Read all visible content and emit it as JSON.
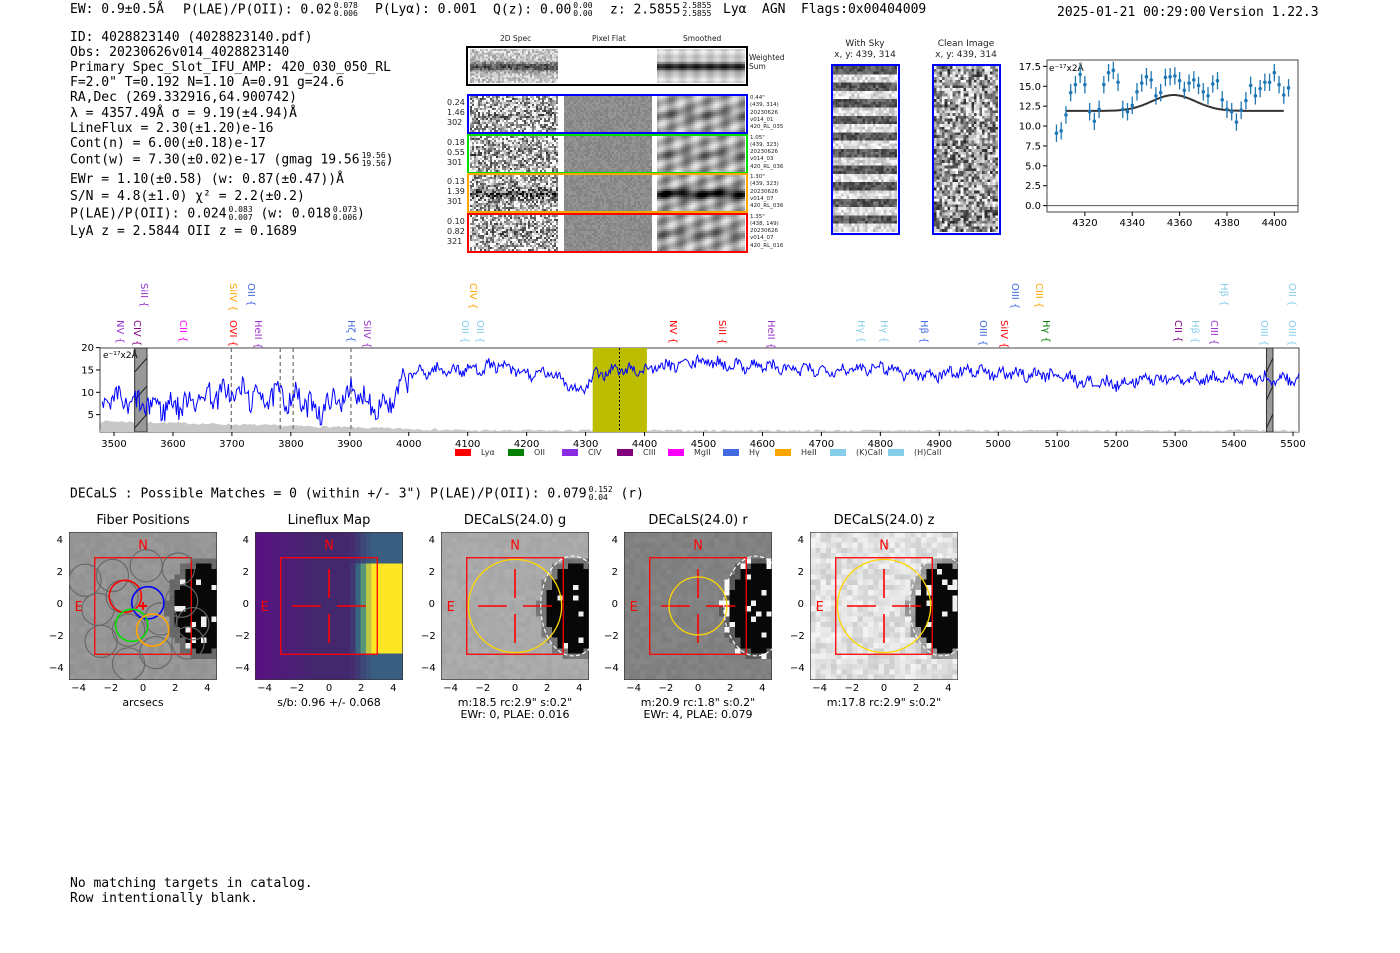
{
  "header": {
    "ew": "EW: 0.9±0.5Å",
    "plae_label": "P(LAE)/P(OII): 0.02",
    "plae_hi": "0.078",
    "plae_lo": "0.006",
    "plya": "P(Lyα): 0.001",
    "qz_label": "Q(z): 0.00",
    "qz_hi": "0.00",
    "qz_lo": "0.00",
    "z_label": "z: 2.5855",
    "z_hi": "2.5855",
    "z_lo": "2.5855",
    "line": "Lyα",
    "agn": "AGN",
    "flags": "Flags:0x00404009",
    "datetime": "2025-01-21 00:29:00",
    "version": "Version 1.22.3"
  },
  "info": {
    "id": "ID: 4028823140 (4028823140.pdf)",
    "obs": "Obs: 20230626v014_4028823140",
    "primary": "Primary Spec_Slot_IFU_AMP: 420_030_050_RL",
    "params": "F=2.0\"  T=0.192  N=1.10  A=0.91  g=24.6",
    "radec": "RA,Dec (269.332916,64.900742)",
    "lambda": "λ = 4357.49Å   σ = 9.19(±4.94)Å",
    "lineflux": "LineFlux = 2.30(±1.20)e-16",
    "contn": "Cont(n) = 6.00(±0.18)e-17",
    "contw": "Cont(w) = 7.30(±0.02)e-17 (gmag 19.56",
    "contw_hi": "19.56",
    "contw_lo": "19.56",
    "contw_end": ")",
    "ewr": "EWr = 1.10(±0.58) (w: 0.87(±0.47))Å",
    "sn": "S/N = 4.8(±1.0)  χ² = 2.2(±0.2)",
    "plae": "P(LAE)/P(OII): 0.024",
    "plae_hi": "0.083",
    "plae_lo": "0.007",
    "plae_w": "(w: 0.018",
    "plae_w_hi": "0.073",
    "plae_w_lo": "0.006",
    "plae_end": ")",
    "z": "LyA z = 2.5844   OII z = 0.1689"
  },
  "spec2d": {
    "headers": [
      "2D Spec",
      "Pixel Flat",
      "Smoothed"
    ],
    "weighted_label": "Weighted Sum",
    "rows": [
      {
        "color": "#0000ff",
        "left": [
          "0.24",
          "1.46",
          "302"
        ],
        "right": [
          "0.44\"",
          "(439, 314)",
          "20230626",
          "v014_01",
          "420_RL_035"
        ]
      },
      {
        "color": "#00dd00",
        "left": [
          "0.18",
          "0.55",
          "301"
        ],
        "right": [
          "1.05\"",
          "(439, 323)",
          "20230626",
          "v014_03",
          "420_RL_036"
        ]
      },
      {
        "color": "#ffa500",
        "left": [
          "0.13",
          "1.39",
          "301"
        ],
        "right": [
          "1.30\"",
          "(439, 323)",
          "20230626",
          "v014_07",
          "420_RL_036"
        ]
      },
      {
        "color": "#ff0000",
        "left": [
          "0.10",
          "0.82",
          "321"
        ],
        "right": [
          "1.35\"",
          "(438, 149)",
          "20230626",
          "v014_07",
          "420_RL_016"
        ]
      }
    ]
  },
  "with_sky": {
    "title": "With Sky",
    "coords": "x, y: 439, 314"
  },
  "clean_image": {
    "title": "Clean Image",
    "coords": "x, y: 439, 314"
  },
  "chart_data": [
    {
      "type": "scatter",
      "name": "line-zoom",
      "unit_label": "e⁻¹⁷x2Å",
      "xlim": [
        4304,
        4410
      ],
      "ylim": [
        -0.8,
        18.3
      ],
      "xticks": [
        4320,
        4340,
        4360,
        4380,
        4400
      ],
      "yticks": [
        "0.0",
        "2.5",
        "5.0",
        "7.5",
        "10.0",
        "12.5",
        "15.0",
        "17.5"
      ],
      "x": [
        4308,
        4310,
        4312,
        4314,
        4316,
        4318,
        4320,
        4322,
        4324,
        4326,
        4328,
        4330,
        4332,
        4334,
        4336,
        4338,
        4340,
        4342,
        4344,
        4346,
        4348,
        4350,
        4352,
        4354,
        4356,
        4358,
        4360,
        4362,
        4364,
        4366,
        4368,
        4370,
        4372,
        4374,
        4376,
        4378,
        4380,
        4382,
        4384,
        4386,
        4388,
        4390,
        4392,
        4394,
        4396,
        4398,
        4400,
        4402,
        4404,
        4406
      ],
      "y": [
        9.1,
        9.4,
        11.4,
        14.2,
        15.2,
        16.5,
        15.2,
        11.8,
        10.6,
        12.1,
        15.2,
        16.7,
        17.0,
        15.5,
        12.1,
        11.8,
        12.6,
        14.3,
        15.4,
        16.2,
        15.8,
        13.8,
        14.2,
        16.1,
        16.2,
        16.3,
        15.7,
        14.5,
        15.4,
        15.8,
        15.1,
        14.3,
        13.8,
        15.3,
        15.7,
        13.3,
        12.1,
        11.8,
        10.5,
        12.0,
        13.2,
        15.1,
        13.8,
        14.7,
        15.5,
        15.5,
        16.7,
        15.2,
        13.9,
        14.8
      ],
      "yerr": 1.1,
      "model": {
        "type": "gaussian",
        "center": 4357.49,
        "sigma": 9.19,
        "continuum": 11.9,
        "amplitude": 2.0,
        "range": [
          4312,
          4404
        ]
      },
      "colors": {
        "points": "#1f77b4",
        "model": "#333333"
      }
    },
    {
      "type": "line",
      "name": "full-spectrum",
      "unit_label": "e⁻¹⁷x2Å",
      "xlim": [
        3478,
        5512
      ],
      "ylim": [
        1.1,
        20
      ],
      "xticks": [
        3500,
        3600,
        3700,
        3800,
        3900,
        4000,
        4100,
        4200,
        4300,
        4400,
        4500,
        4600,
        4700,
        4800,
        4900,
        5000,
        5100,
        5200,
        5300,
        5400,
        5500
      ],
      "yticks": [
        5,
        10,
        15,
        20
      ],
      "continuum_x": [
        3480,
        3500,
        3550,
        3600,
        3650,
        3700,
        3750,
        3800,
        3850,
        3900,
        3950,
        3975,
        4000,
        4050,
        4100,
        4150,
        4200,
        4250,
        4290,
        4320,
        4350,
        4400,
        4450,
        4500,
        4550,
        4600,
        4650,
        4700,
        4750,
        4800,
        4850,
        4900,
        4950,
        5000,
        5050,
        5100,
        5150,
        5200,
        5250,
        5300,
        5350,
        5400,
        5450,
        5500,
        5512
      ],
      "continuum_y": [
        7,
        8,
        7,
        7,
        9,
        10,
        9,
        9,
        6,
        10,
        7,
        8,
        14,
        15,
        15,
        16,
        14,
        14,
        10,
        14,
        15,
        15,
        16,
        17,
        16,
        16,
        15,
        15,
        15,
        16,
        14,
        14,
        15,
        14,
        14,
        14,
        12,
        12,
        13,
        13,
        13,
        13,
        13,
        13,
        13
      ],
      "series_color": "#0000ff",
      "highlight_region": [
        4312,
        4404
      ],
      "highlight_color": "#bdbd00",
      "line_center": 4357.49,
      "masked_regions": [
        [
          3535,
          3556
        ],
        [
          5455,
          5466
        ]
      ],
      "dashed_lines": [
        3699,
        3782,
        3804,
        3902
      ],
      "line_labels": [
        {
          "t": "NV",
          "w": 3508,
          "c": "#9a32cd",
          "row": 0
        },
        {
          "t": "CIV",
          "w": 3537,
          "c": "#800080",
          "row": 0
        },
        {
          "t": "SiII",
          "w": 3549,
          "c": "#9a32cd",
          "row": 0
        },
        {
          "t": "CII",
          "w": 3615,
          "c": "#ff00ff",
          "row": 0
        },
        {
          "t": "OVI",
          "w": 3700,
          "c": "#ff0000",
          "row": 0
        },
        {
          "t": "HeII",
          "w": 3742,
          "c": "#9a32cd",
          "row": 0
        },
        {
          "t": "Hζ",
          "w": 3900,
          "c": "#4169e1",
          "row": 0
        },
        {
          "t": "SiIV",
          "w": 3928,
          "c": "#9a32cd",
          "row": 0
        },
        {
          "t": "OII",
          "w": 4093,
          "c": "#87ceeb",
          "row": 0
        },
        {
          "t": "CIV",
          "w": 4108,
          "c": "#ffa500",
          "row": 0
        },
        {
          "t": "OII",
          "w": 4120,
          "c": "#87ceeb",
          "row": 0
        },
        {
          "t": "NV",
          "w": 4447,
          "c": "#ff0000",
          "row": 0
        },
        {
          "t": "SiII",
          "w": 4530,
          "c": "#ff0000",
          "row": 0
        },
        {
          "t": "HeII",
          "w": 4613,
          "c": "#9a32cd",
          "row": 0
        },
        {
          "t": "Hγ",
          "w": 4765,
          "c": "#87ceeb",
          "row": 0
        },
        {
          "t": "Hγ",
          "w": 4805,
          "c": "#87ceeb",
          "row": 0
        },
        {
          "t": "Hβ",
          "w": 4873,
          "c": "#4169e1",
          "row": 0
        },
        {
          "t": "OIII",
          "w": 4972,
          "c": "#4169e1",
          "row": 0
        },
        {
          "t": "SiIV",
          "w": 5008,
          "c": "#ff0000",
          "row": 0
        },
        {
          "t": "OIII",
          "w": 5026,
          "c": "#4169e1",
          "row": 0
        },
        {
          "t": "Hγ",
          "w": 5080,
          "c": "#008000",
          "row": 0
        },
        {
          "t": "CII",
          "w": 5303,
          "c": "#800080",
          "row": 0
        },
        {
          "t": "Hβ",
          "w": 5332,
          "c": "#87ceeb",
          "row": 0
        },
        {
          "t": "CIII",
          "w": 5364,
          "c": "#9a32cd",
          "row": 0
        },
        {
          "t": "Hβ",
          "w": 5381,
          "c": "#87ceeb",
          "row": 0
        },
        {
          "t": "OIII",
          "w": 5449,
          "c": "#87ceeb",
          "row": 0
        },
        {
          "t": "OIII",
          "w": 5497,
          "c": "#87ceeb",
          "row": 0
        },
        {
          "t": "SiIV",
          "w": 3700,
          "c": "#ffa500",
          "row": 1
        },
        {
          "t": "OII",
          "w": 3731,
          "c": "#4169e1",
          "row": 1
        },
        {
          "t": "CIII",
          "w": 5067,
          "c": "#ffa500",
          "row": 1
        },
        {
          "t": "OII",
          "w": 5497,
          "c": "#87ceeb",
          "row": 1
        }
      ],
      "legend": [
        {
          "label": "Lyα",
          "color": "#ff0000"
        },
        {
          "label": "OII",
          "color": "#008000"
        },
        {
          "label": "CIV",
          "color": "#8a2be2"
        },
        {
          "label": "CIII",
          "color": "#800080"
        },
        {
          "label": "MgII",
          "color": "#ff00ff"
        },
        {
          "label": "Hγ",
          "color": "#4169e1"
        },
        {
          "label": "HeII",
          "color": "#ffa500"
        },
        {
          "label": "(K)CaII",
          "color": "#87ceeb"
        },
        {
          "label": "(H)CaII",
          "color": "#87ceeb"
        }
      ],
      "legend_position": "bottom-center"
    }
  ],
  "decals": {
    "summary": "DECaLS : Possible Matches = 0 (within +/- 3\")  P(LAE)/P(OII): 0.079",
    "summary_hi": "0.152",
    "summary_lo": "0.04",
    "summary_end": "(r)",
    "ticks": [
      "4",
      "2",
      "0",
      "−2",
      "−4"
    ],
    "xticks": [
      "−4",
      "−2",
      "0",
      "2",
      "4"
    ],
    "north": "N",
    "east": "E",
    "panels": [
      {
        "title": "Fiber Positions",
        "caption": [
          "arcsecs"
        ]
      },
      {
        "title": "Lineflux Map",
        "caption": [
          "s/b: 0.96 +/- 0.068"
        ]
      },
      {
        "title": "DECaLS(24.0) g",
        "caption": [
          "m:18.5 rc:2.9\"  s:0.2\"",
          "EWr: 0, PLAE: 0.016"
        ],
        "aperture_radius": 2.9
      },
      {
        "title": "DECaLS(24.0) r",
        "caption": [
          "m:20.9 rc:1.8\"  s:0.2\"",
          "EWr: 4, PLAE: 0.079"
        ],
        "aperture_radius": 1.8
      },
      {
        "title": "DECaLS(24.0) z",
        "caption": [
          "m:17.8 rc:2.9\"  s:0.2\""
        ],
        "aperture_radius": 2.9
      }
    ]
  },
  "catalog": {
    "line1": "No matching targets in catalog.",
    "line2": "Row intentionally blank."
  }
}
